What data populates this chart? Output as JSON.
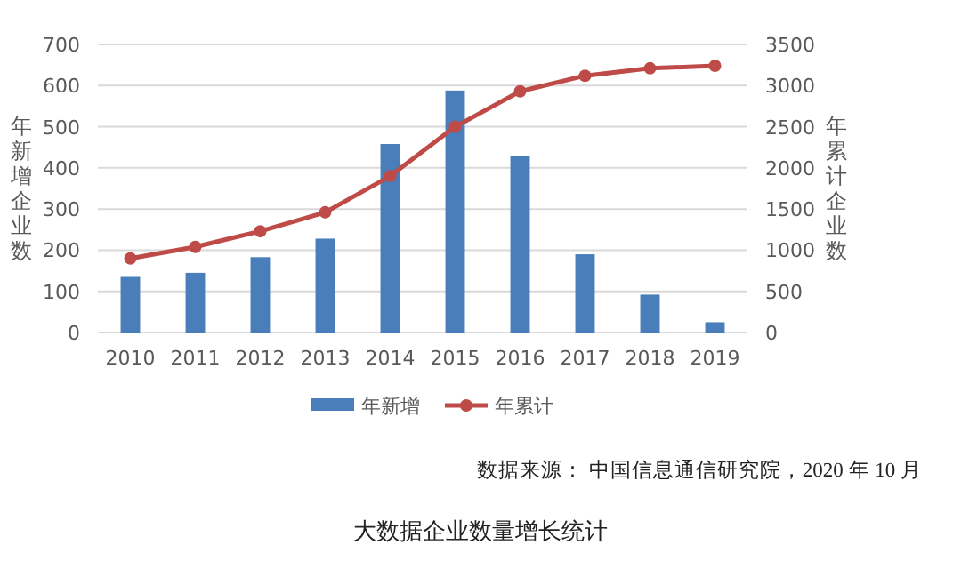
{
  "chart_data": {
    "type": "bar",
    "title": "大数据企业数量增长统计",
    "ylabel": "年新增企业数",
    "y2label": "年累计企业数",
    "annotations": [
      "数据来源：  中国信息通信研究院，2020 年 10 月"
    ],
    "categories": [
      "2010",
      "2011",
      "2012",
      "2013",
      "2014",
      "2015",
      "2016",
      "2017",
      "2018",
      "2019"
    ],
    "series": [
      {
        "name": "年新增",
        "color": "#4a7ebb",
        "values": [
          135,
          145,
          183,
          228,
          458,
          588,
          428,
          190,
          92,
          25
        ]
      },
      {
        "name": "年累计",
        "type": "line",
        "axis": "y2",
        "color": "#be4b48",
        "marker": "circle",
        "line_style": "solid",
        "values": [
          900,
          1040,
          1230,
          1460,
          1900,
          2500,
          2930,
          3120,
          3210,
          3240
        ]
      }
    ],
    "ylim": [
      0,
      700
    ],
    "yticks": [
      0,
      100,
      200,
      300,
      400,
      500,
      600,
      700
    ],
    "y2lim": [
      0,
      3500
    ],
    "y2ticks": [
      0,
      500,
      1000,
      1500,
      2000,
      2500,
      3000,
      3500
    ],
    "grid": "y",
    "legend": "bottom"
  }
}
